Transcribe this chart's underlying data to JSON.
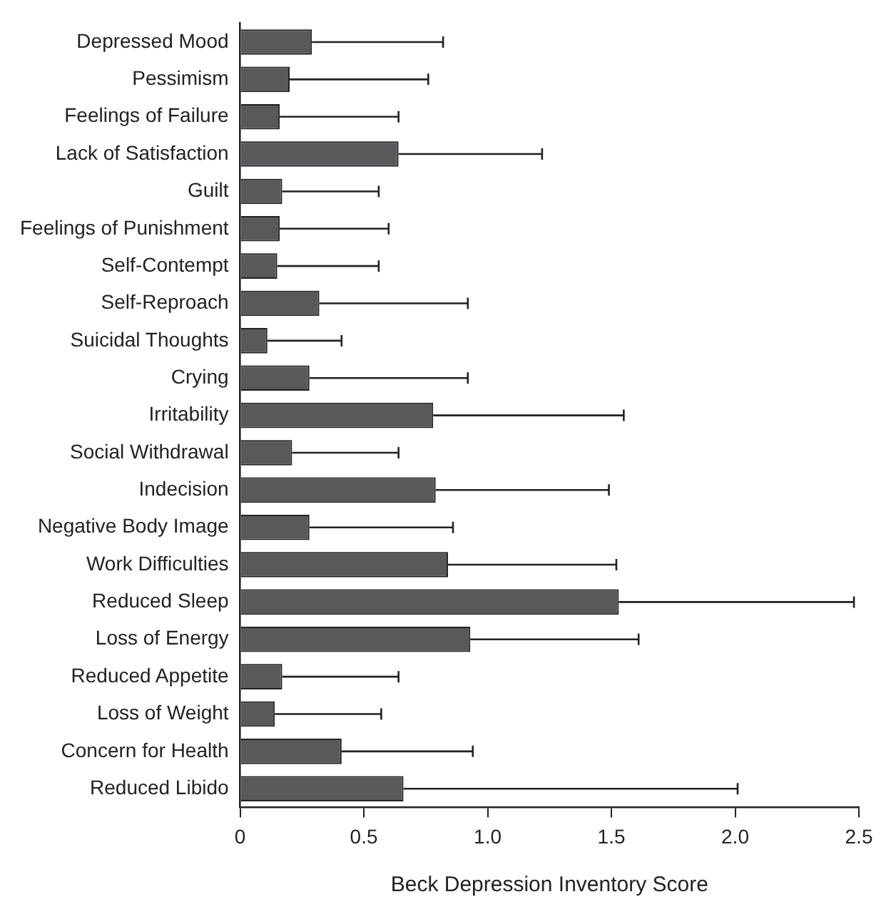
{
  "chart_data": {
    "type": "bar",
    "orientation": "horizontal",
    "xlabel": "Beck Depression Inventory Score",
    "categories": [
      "Depressed Mood",
      "Pessimism",
      "Feelings of Failure",
      "Lack of Satisfaction",
      "Guilt",
      "Feelings of Punishment",
      "Self-Contempt",
      "Self-Reproach",
      "Suicidal Thoughts",
      "Crying",
      "Irritability",
      "Social Withdrawal",
      "Indecision",
      "Negative Body Image",
      "Work Difficulties",
      "Reduced Sleep",
      "Loss of Energy",
      "Reduced Appetite",
      "Loss of Weight",
      "Concern for Health",
      "Reduced Libido"
    ],
    "values": [
      0.29,
      0.2,
      0.16,
      0.64,
      0.17,
      0.16,
      0.15,
      0.32,
      0.11,
      0.28,
      0.78,
      0.21,
      0.79,
      0.28,
      0.84,
      1.53,
      0.93,
      0.17,
      0.14,
      0.41,
      0.66
    ],
    "errors": [
      0.53,
      0.56,
      0.48,
      0.58,
      0.39,
      0.44,
      0.41,
      0.6,
      0.3,
      0.64,
      0.77,
      0.43,
      0.7,
      0.58,
      0.68,
      0.95,
      0.68,
      0.47,
      0.43,
      0.53,
      1.35
    ],
    "color": "#58595b",
    "xlim": [
      0,
      2.5
    ],
    "xticks": [
      0,
      0.5,
      {
        "value": 1,
        "label": "1.0"
      },
      1.5,
      {
        "value": 2,
        "label": "2.0"
      },
      2.5
    ],
    "grid": false,
    "legend": false
  }
}
